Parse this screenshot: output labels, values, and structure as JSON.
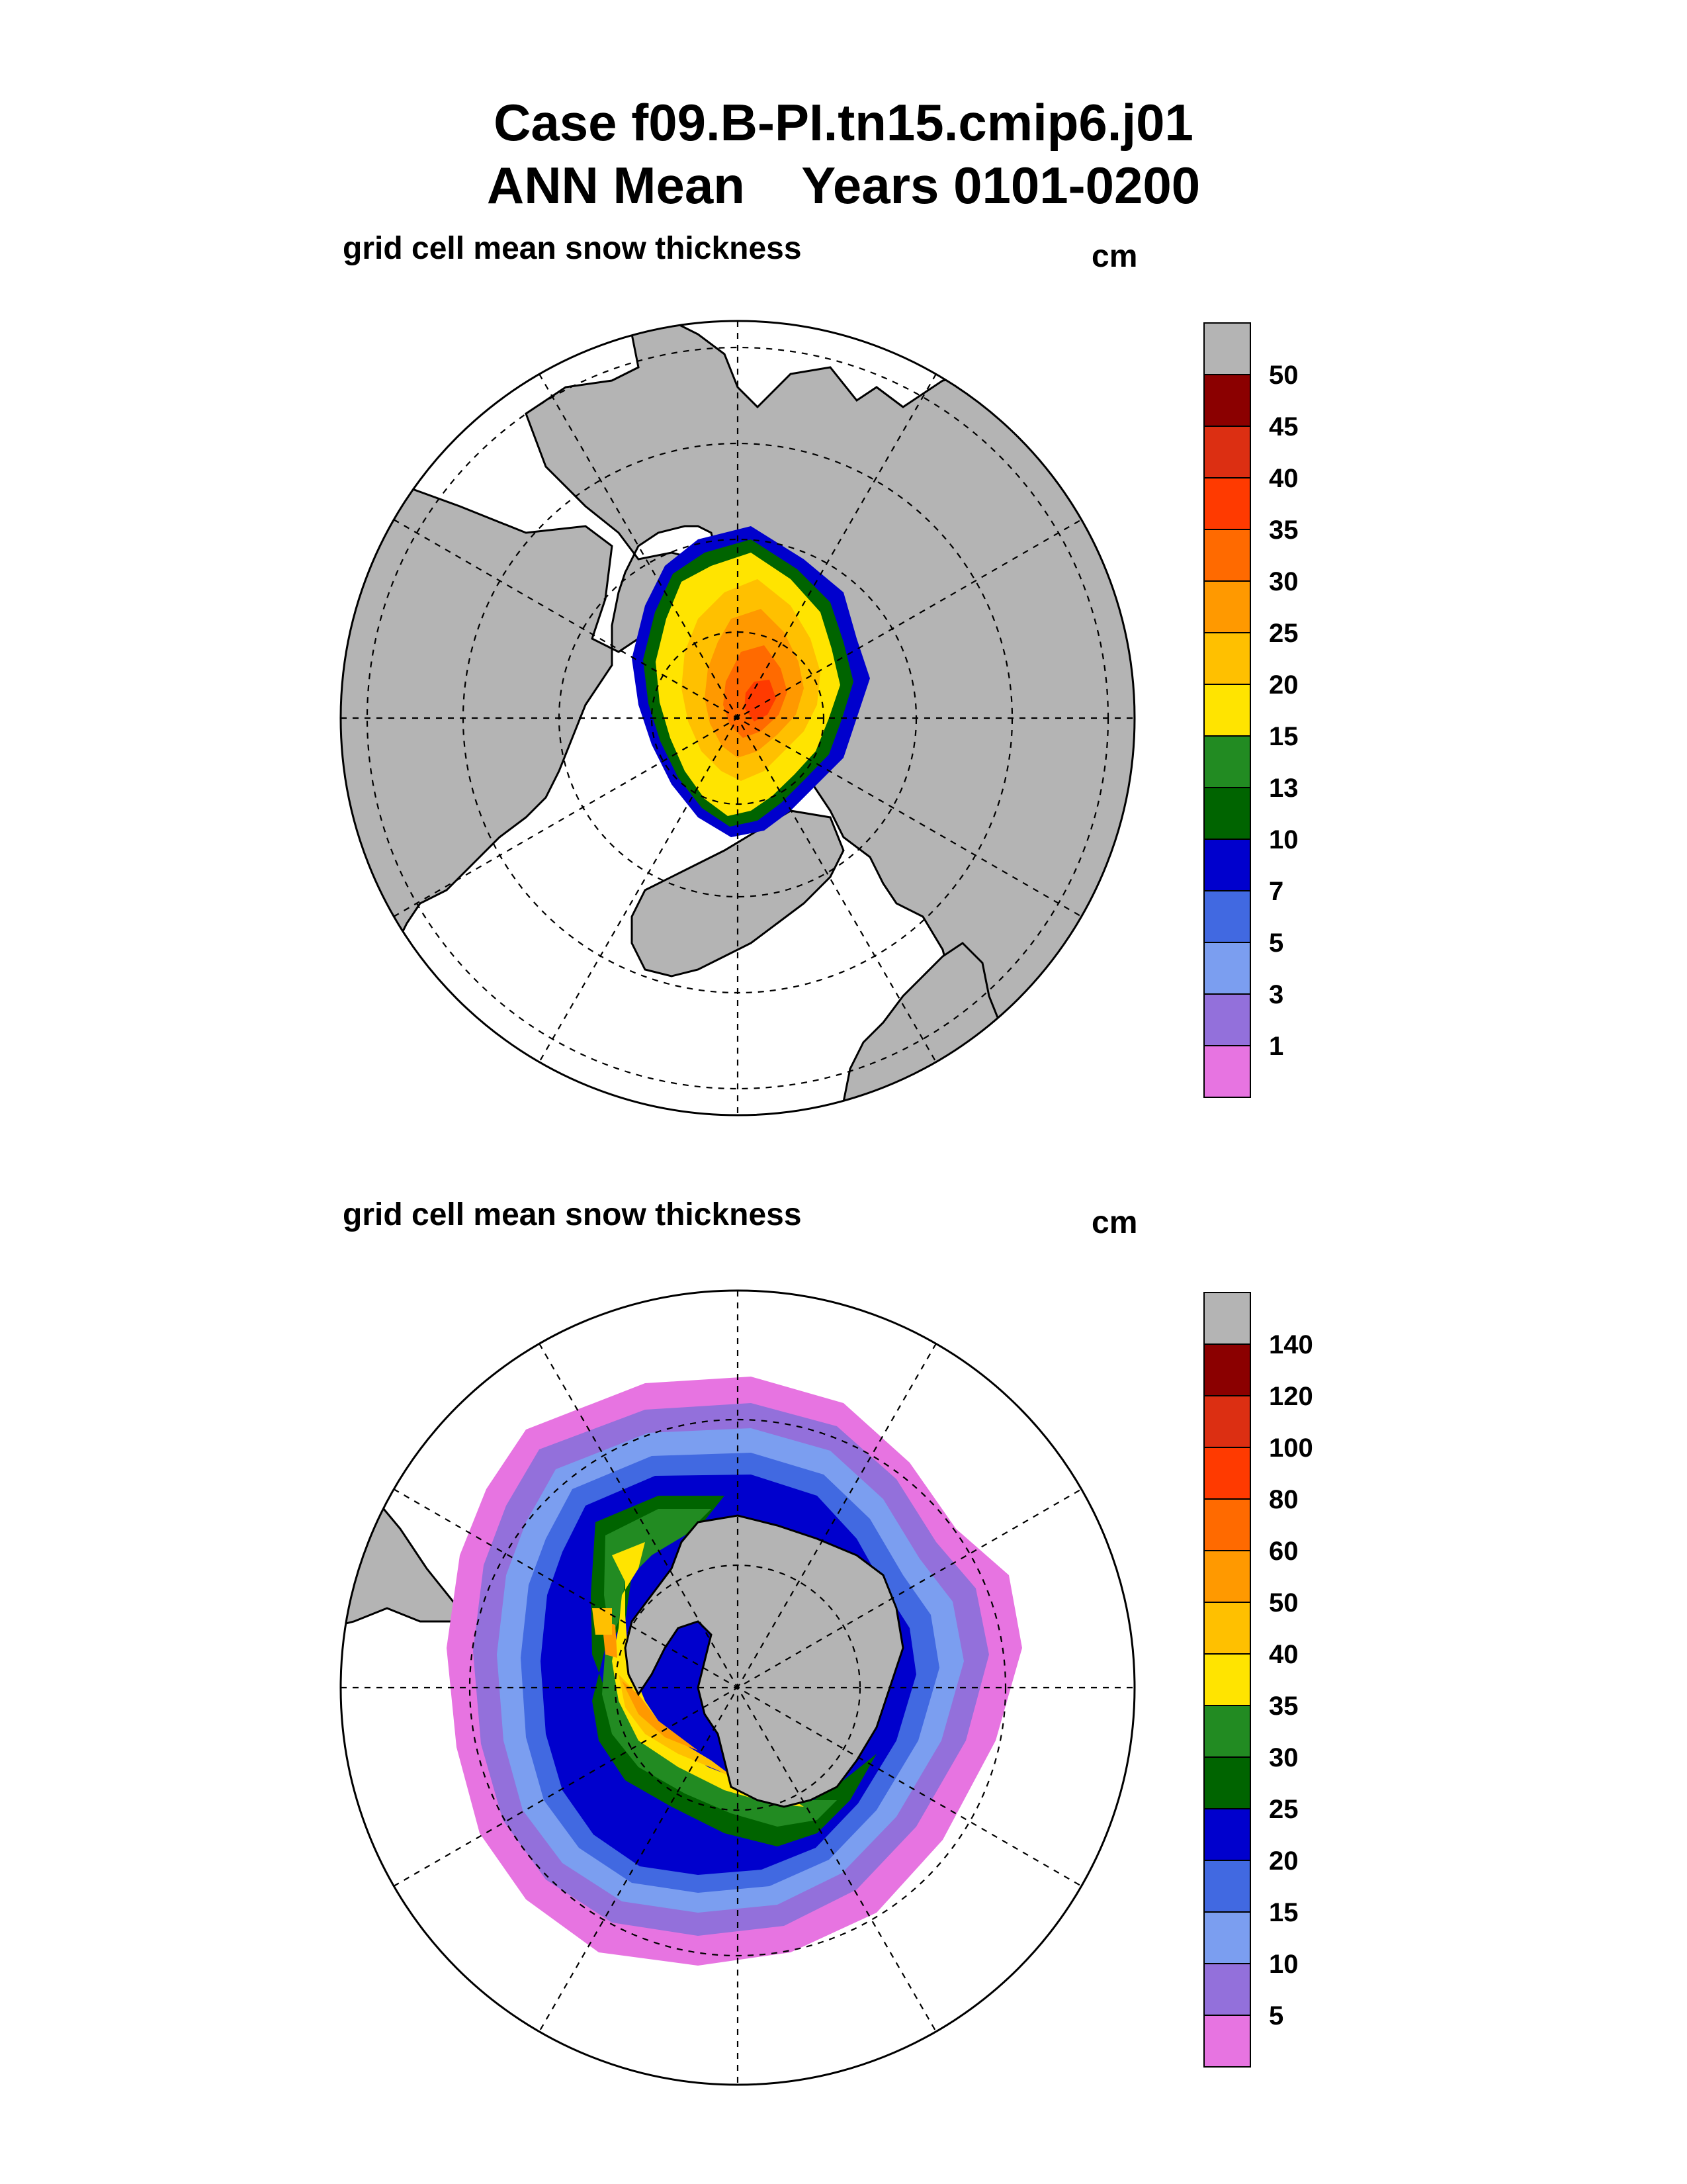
{
  "title": {
    "line1": "Case f09.B-PI.tn15.cmip6.j01",
    "line2": "ANN Mean    Years 0101-0200"
  },
  "panels": [
    {
      "id": "north",
      "field_label": "grid cell mean snow thickness",
      "units": "cm",
      "hemisphere": "north",
      "colorbar": {
        "labels": [
          "50",
          "45",
          "40",
          "35",
          "30",
          "25",
          "20",
          "15",
          "13",
          "10",
          "7",
          "5",
          "3",
          "1"
        ],
        "colors": [
          "#b4b4b4",
          "#8b0000",
          "#dc2f12",
          "#ff3a00",
          "#ff6a00",
          "#ff9900",
          "#ffc000",
          "#ffe400",
          "#228b22",
          "#006400",
          "#0000cd",
          "#4169e1",
          "#7b9ef0",
          "#9370db",
          "#e774e1"
        ]
      }
    },
    {
      "id": "south",
      "field_label": "grid cell mean snow thickness",
      "units": "cm",
      "hemisphere": "south",
      "colorbar": {
        "labels": [
          "140",
          "120",
          "100",
          "80",
          "60",
          "50",
          "40",
          "35",
          "30",
          "25",
          "20",
          "15",
          "10",
          "5"
        ],
        "colors": [
          "#b4b4b4",
          "#8b0000",
          "#dc2f12",
          "#ff3a00",
          "#ff6a00",
          "#ff9900",
          "#ffc000",
          "#ffe400",
          "#228b22",
          "#006400",
          "#0000cd",
          "#4169e1",
          "#7b9ef0",
          "#9370db",
          "#e774e1"
        ]
      }
    }
  ],
  "colors": {
    "land": "#b4b4b4",
    "ocean": "#ffffff",
    "coast": "#000000",
    "grid": "#000000"
  }
}
